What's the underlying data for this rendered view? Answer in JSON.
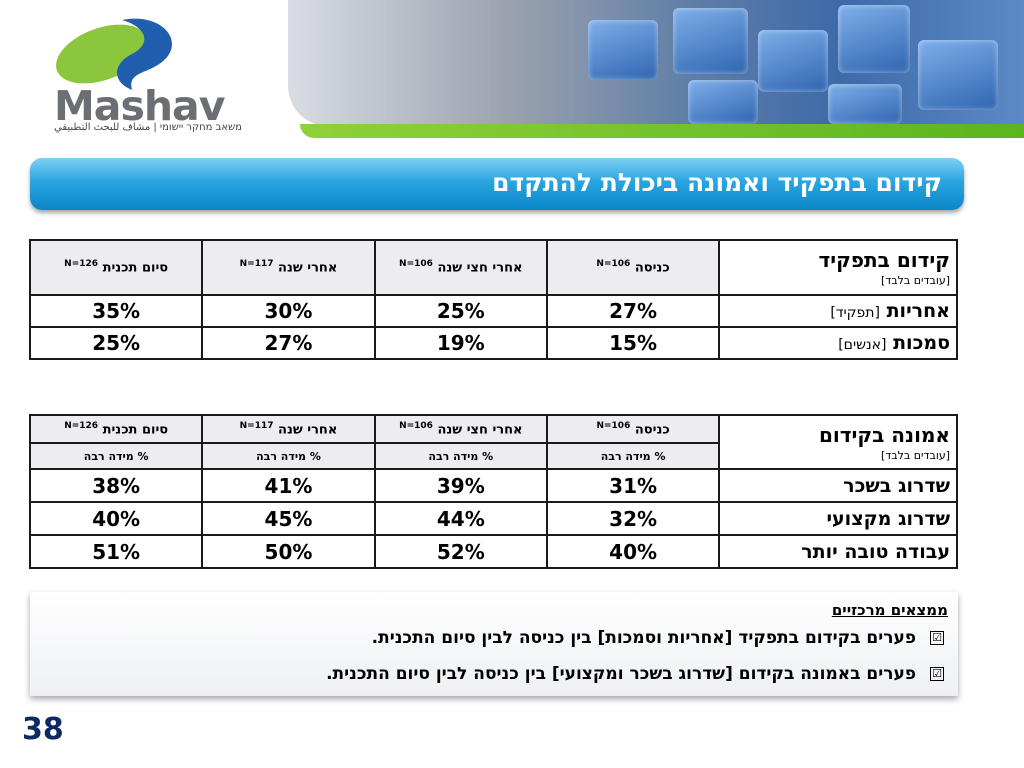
{
  "logo": {
    "word": "Mashav",
    "tagline": "משאב מחקר יישומי | مشاف للبحث التطبيقي"
  },
  "title": "קידום בתפקיד ואמונה ביכולת להתקדם",
  "table1": {
    "title": "קידום בתפקיד",
    "subtitle": "[עובדים בלבד]",
    "columns": [
      {
        "label": "כניסה",
        "n": "N=106"
      },
      {
        "label": "אחרי חצי שנה",
        "n": "N=106"
      },
      {
        "label": "אחרי שנה",
        "n": "N=117"
      },
      {
        "label": "סיום תכנית",
        "n": "N=126"
      }
    ],
    "rows": [
      {
        "label": "אחריות",
        "note": "[תפקיד]",
        "values": [
          "27%",
          "25%",
          "30%",
          "35%"
        ]
      },
      {
        "label": "סמכות",
        "note": "[אנשים]",
        "values": [
          "15%",
          "19%",
          "27%",
          "25%"
        ]
      }
    ]
  },
  "table2": {
    "title": "אמונה בקידום",
    "subtitle": "[עובדים בלבד]",
    "columns": [
      {
        "label": "כניסה",
        "n": "N=106"
      },
      {
        "label": "אחרי חצי שנה",
        "n": "N=106"
      },
      {
        "label": "אחרי שנה",
        "n": "N=117"
      },
      {
        "label": "סיום תכנית",
        "n": "N=126"
      }
    ],
    "subheader": "% מידה רבה",
    "rows": [
      {
        "label": "שדרוג בשכר",
        "values": [
          "31%",
          "39%",
          "41%",
          "38%"
        ]
      },
      {
        "label": "שדרוג מקצועי",
        "values": [
          "32%",
          "44%",
          "45%",
          "40%"
        ]
      },
      {
        "label": "עבודה טובה יותר",
        "values": [
          "40%",
          "52%",
          "50%",
          "51%"
        ]
      }
    ]
  },
  "findings": {
    "title": "ממצאים מרכזיים",
    "check_glyph": "☑",
    "items": [
      "פערים בקידום בתפקיד [אחריות וסמכות] בין כניסה לבין סיום התכנית.",
      "פערים באמונה בקידום [שדרוג בשכר ומקצועי] בין כניסה לבין סיום התכנית."
    ]
  },
  "page_number": "38"
}
